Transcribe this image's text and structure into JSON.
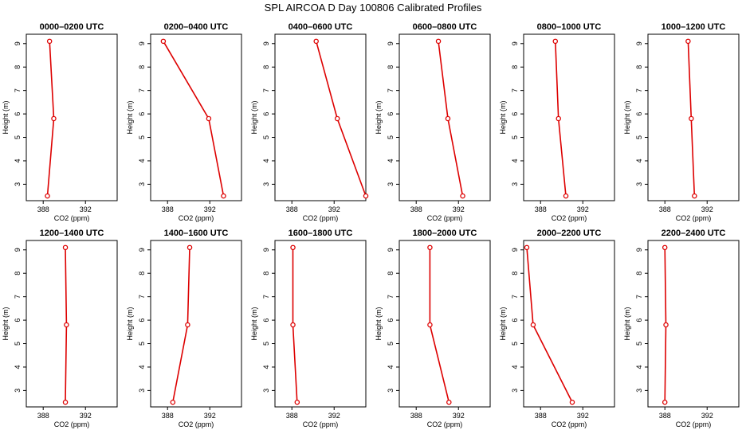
{
  "figure": {
    "title": "SPL AIRCOA D  Day 100806  Calibrated Profiles"
  },
  "colors": {
    "series": "#dd0000",
    "axes": "#000000",
    "background": "#ffffff"
  },
  "chart_data": [
    {
      "type": "line",
      "title": "0000–0200 UTC",
      "xlabel": "CO2 (ppm)",
      "ylabel": "Height (m)",
      "xlim": [
        386.4,
        395.0
      ],
      "ylim": [
        2.3,
        9.4
      ],
      "xticks": [
        388,
        392
      ],
      "yticks": [
        3,
        4,
        5,
        6,
        7,
        8,
        9
      ],
      "series": [
        {
          "x": [
            388.6,
            389.0,
            388.4
          ],
          "y": [
            9.1,
            5.8,
            2.5
          ]
        }
      ]
    },
    {
      "type": "line",
      "title": "0200–0400 UTC",
      "xlabel": "CO2 (ppm)",
      "ylabel": "Height (m)",
      "xlim": [
        386.4,
        395.0
      ],
      "ylim": [
        2.3,
        9.4
      ],
      "xticks": [
        388,
        392
      ],
      "yticks": [
        3,
        4,
        5,
        6,
        7,
        8,
        9
      ],
      "series": [
        {
          "x": [
            387.6,
            391.9,
            393.3
          ],
          "y": [
            9.1,
            5.8,
            2.5
          ]
        }
      ]
    },
    {
      "type": "line",
      "title": "0400–0600 UTC",
      "xlabel": "CO2 (ppm)",
      "ylabel": "Height (m)",
      "xlim": [
        386.4,
        395.0
      ],
      "ylim": [
        2.3,
        9.4
      ],
      "xticks": [
        388,
        392
      ],
      "yticks": [
        3,
        4,
        5,
        6,
        7,
        8,
        9
      ],
      "series": [
        {
          "x": [
            390.3,
            392.3,
            395.0
          ],
          "y": [
            9.1,
            5.8,
            2.5
          ]
        }
      ]
    },
    {
      "type": "line",
      "title": "0600–0800 UTC",
      "xlabel": "CO2 (ppm)",
      "ylabel": "Height (m)",
      "xlim": [
        386.4,
        395.0
      ],
      "ylim": [
        2.3,
        9.4
      ],
      "xticks": [
        388,
        392
      ],
      "yticks": [
        3,
        4,
        5,
        6,
        7,
        8,
        9
      ],
      "series": [
        {
          "x": [
            390.1,
            391.0,
            392.4
          ],
          "y": [
            9.1,
            5.8,
            2.5
          ]
        }
      ]
    },
    {
      "type": "line",
      "title": "0800–1000 UTC",
      "xlabel": "CO2 (ppm)",
      "ylabel": "Height (m)",
      "xlim": [
        386.4,
        395.0
      ],
      "ylim": [
        2.3,
        9.4
      ],
      "xticks": [
        388,
        392
      ],
      "yticks": [
        3,
        4,
        5,
        6,
        7,
        8,
        9
      ],
      "series": [
        {
          "x": [
            389.4,
            389.7,
            390.4
          ],
          "y": [
            9.1,
            5.8,
            2.5
          ]
        }
      ]
    },
    {
      "type": "line",
      "title": "1000–1200 UTC",
      "xlabel": "CO2 (ppm)",
      "ylabel": "Height (m)",
      "xlim": [
        386.4,
        395.0
      ],
      "ylim": [
        2.3,
        9.4
      ],
      "xticks": [
        388,
        392
      ],
      "yticks": [
        3,
        4,
        5,
        6,
        7,
        8,
        9
      ],
      "series": [
        {
          "x": [
            390.2,
            390.5,
            390.8
          ],
          "y": [
            9.1,
            5.8,
            2.5
          ]
        }
      ]
    },
    {
      "type": "line",
      "title": "1200–1400 UTC",
      "xlabel": "CO2 (ppm)",
      "ylabel": "Height (m)",
      "xlim": [
        386.4,
        395.0
      ],
      "ylim": [
        2.3,
        9.4
      ],
      "xticks": [
        388,
        392
      ],
      "yticks": [
        3,
        4,
        5,
        6,
        7,
        8,
        9
      ],
      "series": [
        {
          "x": [
            390.1,
            390.2,
            390.1
          ],
          "y": [
            9.1,
            5.8,
            2.5
          ]
        }
      ]
    },
    {
      "type": "line",
      "title": "1400–1600 UTC",
      "xlabel": "CO2 (ppm)",
      "ylabel": "Height (m)",
      "xlim": [
        386.4,
        395.0
      ],
      "ylim": [
        2.3,
        9.4
      ],
      "xticks": [
        388,
        392
      ],
      "yticks": [
        3,
        4,
        5,
        6,
        7,
        8,
        9
      ],
      "series": [
        {
          "x": [
            390.1,
            389.9,
            388.5
          ],
          "y": [
            9.1,
            5.8,
            2.5
          ]
        }
      ]
    },
    {
      "type": "line",
      "title": "1600–1800 UTC",
      "xlabel": "CO2 (ppm)",
      "ylabel": "Height (m)",
      "xlim": [
        386.4,
        395.0
      ],
      "ylim": [
        2.3,
        9.4
      ],
      "xticks": [
        388,
        392
      ],
      "yticks": [
        3,
        4,
        5,
        6,
        7,
        8,
        9
      ],
      "series": [
        {
          "x": [
            388.1,
            388.1,
            388.5
          ],
          "y": [
            9.1,
            5.8,
            2.5
          ]
        }
      ]
    },
    {
      "type": "line",
      "title": "1800–2000 UTC",
      "xlabel": "CO2 (ppm)",
      "ylabel": "Height (m)",
      "xlim": [
        386.4,
        395.0
      ],
      "ylim": [
        2.3,
        9.4
      ],
      "xticks": [
        388,
        392
      ],
      "yticks": [
        3,
        4,
        5,
        6,
        7,
        8,
        9
      ],
      "series": [
        {
          "x": [
            389.3,
            389.3,
            391.1
          ],
          "y": [
            9.1,
            5.8,
            2.5
          ]
        }
      ]
    },
    {
      "type": "line",
      "title": "2000–2200 UTC",
      "xlabel": "CO2 (ppm)",
      "ylabel": "Height (m)",
      "xlim": [
        386.4,
        395.0
      ],
      "ylim": [
        2.3,
        9.4
      ],
      "xticks": [
        388,
        392
      ],
      "yticks": [
        3,
        4,
        5,
        6,
        7,
        8,
        9
      ],
      "series": [
        {
          "x": [
            386.7,
            387.3,
            391.0
          ],
          "y": [
            9.1,
            5.8,
            2.5
          ]
        }
      ]
    },
    {
      "type": "line",
      "title": "2200–2400 UTC",
      "xlabel": "CO2 (ppm)",
      "ylabel": "Height (m)",
      "xlim": [
        386.4,
        395.0
      ],
      "ylim": [
        2.3,
        9.4
      ],
      "xticks": [
        388,
        392
      ],
      "yticks": [
        3,
        4,
        5,
        6,
        7,
        8,
        9
      ],
      "series": [
        {
          "x": [
            388.0,
            388.1,
            388.0
          ],
          "y": [
            9.1,
            5.8,
            2.5
          ]
        }
      ]
    }
  ]
}
